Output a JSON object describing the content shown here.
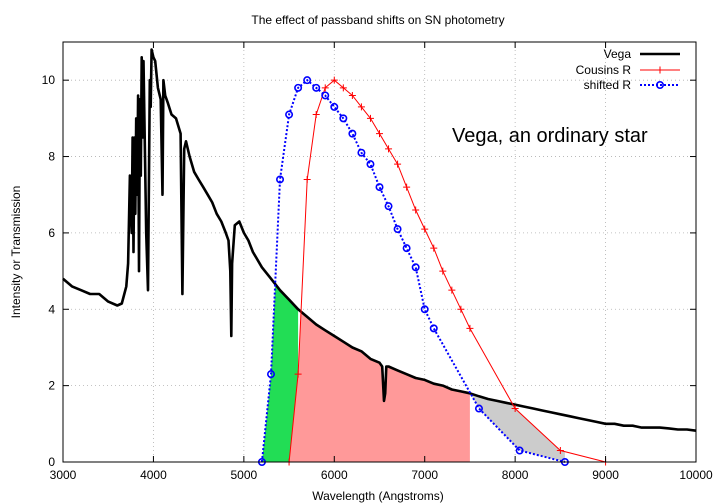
{
  "chart_data": {
    "type": "line",
    "title": "The effect of passband shifts on SN photometry",
    "xlabel": "Wavelength (Angstroms)",
    "ylabel": "Intensity or Transmission",
    "xlim": [
      3000,
      10000
    ],
    "ylim": [
      0,
      11
    ],
    "x_ticks": [
      3000,
      4000,
      5000,
      6000,
      7000,
      8000,
      9000,
      10000
    ],
    "y_ticks": [
      0,
      2,
      4,
      6,
      8,
      10
    ],
    "grid": true,
    "legend_position": "top-right",
    "annotation": "Vega, an ordinary star",
    "series": [
      {
        "name": "Vega",
        "style": "thick-line",
        "color": "#000000",
        "x": [
          3000,
          3100,
          3200,
          3300,
          3400,
          3500,
          3600,
          3650,
          3700,
          3720,
          3740,
          3760,
          3770,
          3780,
          3790,
          3800,
          3810,
          3820,
          3830,
          3840,
          3850,
          3860,
          3870,
          3880,
          3890,
          3900,
          3920,
          3940,
          3960,
          3970,
          3980,
          4000,
          4020,
          4050,
          4080,
          4100,
          4110,
          4130,
          4160,
          4200,
          4250,
          4300,
          4320,
          4340,
          4360,
          4400,
          4450,
          4500,
          4550,
          4600,
          4650,
          4700,
          4750,
          4800,
          4830,
          4850,
          4861,
          4870,
          4900,
          4950,
          5000,
          5050,
          5100,
          5200,
          5300,
          5400,
          5500,
          5600,
          5700,
          5800,
          5900,
          6000,
          6100,
          6200,
          6300,
          6400,
          6500,
          6530,
          6550,
          6563,
          6575,
          6600,
          6700,
          6800,
          6900,
          7000,
          7100,
          7200,
          7300,
          7400,
          7500,
          7600,
          7700,
          7800,
          7900,
          8000,
          8100,
          8200,
          8300,
          8400,
          8500,
          8600,
          8700,
          8800,
          8900,
          9000,
          9100,
          9200,
          9300,
          9400,
          9500,
          9600,
          9700,
          9800,
          9900,
          10000
        ],
        "y": [
          4.8,
          4.6,
          4.5,
          4.4,
          4.4,
          4.2,
          4.1,
          4.15,
          4.6,
          5.2,
          7.5,
          6.0,
          8.5,
          5.5,
          8.5,
          6.5,
          9.0,
          7.0,
          9.6,
          5.0,
          9.5,
          7.5,
          10.6,
          8.5,
          10.5,
          9.0,
          6.0,
          4.5,
          10.0,
          9.3,
          10.8,
          10.6,
          10.5,
          9.8,
          9.5,
          7.0,
          10.0,
          9.6,
          9.4,
          9.1,
          9.0,
          8.6,
          4.4,
          8.2,
          8.4,
          8.0,
          7.6,
          7.4,
          7.2,
          7.0,
          6.8,
          6.5,
          6.3,
          6.0,
          5.8,
          5.0,
          3.3,
          5.2,
          6.2,
          6.3,
          6.0,
          5.8,
          5.5,
          5.1,
          4.8,
          4.5,
          4.25,
          4.0,
          3.8,
          3.6,
          3.45,
          3.3,
          3.15,
          3.0,
          2.9,
          2.7,
          2.6,
          2.5,
          1.6,
          1.8,
          2.5,
          2.5,
          2.4,
          2.3,
          2.2,
          2.15,
          2.05,
          2.0,
          1.9,
          1.85,
          1.8,
          1.72,
          1.65,
          1.6,
          1.55,
          1.5,
          1.45,
          1.4,
          1.35,
          1.3,
          1.25,
          1.2,
          1.15,
          1.1,
          1.05,
          1.0,
          1.0,
          0.95,
          0.95,
          0.9,
          0.9,
          0.9,
          0.88,
          0.85,
          0.85,
          0.82
        ]
      },
      {
        "name": "Cousins R",
        "style": "line-plus",
        "color": "#ff0000",
        "x": [
          5500,
          5600,
          5700,
          5800,
          5900,
          6000,
          6100,
          6200,
          6300,
          6400,
          6500,
          6600,
          6700,
          6800,
          6900,
          7000,
          7100,
          7200,
          7300,
          7400,
          7500,
          8000,
          8500,
          9000
        ],
        "y": [
          0.0,
          2.3,
          7.4,
          9.1,
          9.8,
          10.0,
          9.8,
          9.6,
          9.3,
          9.0,
          8.6,
          8.2,
          7.8,
          7.2,
          6.6,
          6.1,
          5.6,
          5.0,
          4.5,
          4.0,
          3.5,
          1.4,
          0.3,
          0.0
        ]
      },
      {
        "name": "shifted R",
        "style": "dotted-circle",
        "color": "#0000ff",
        "x": [
          5200,
          5300,
          5400,
          5500,
          5600,
          5700,
          5800,
          5900,
          6000,
          6100,
          6200,
          6300,
          6400,
          6500,
          6600,
          6700,
          6800,
          6900,
          7000,
          7100,
          7600,
          8050,
          8550
        ],
        "y": [
          0.0,
          2.3,
          7.4,
          9.1,
          9.8,
          10.0,
          9.8,
          9.6,
          9.3,
          9.0,
          8.6,
          8.1,
          7.8,
          7.2,
          6.7,
          6.1,
          5.6,
          5.1,
          4.0,
          3.5,
          1.4,
          0.3,
          0.0
        ]
      }
    ],
    "fill_regions": [
      {
        "color": "#ff9999",
        "x_range": [
          5500,
          7500
        ]
      },
      {
        "color": "#22dd55",
        "x_range": [
          5200,
          5600
        ]
      },
      {
        "color": "#cccccc",
        "x_range": [
          7500,
          8550
        ]
      }
    ]
  }
}
